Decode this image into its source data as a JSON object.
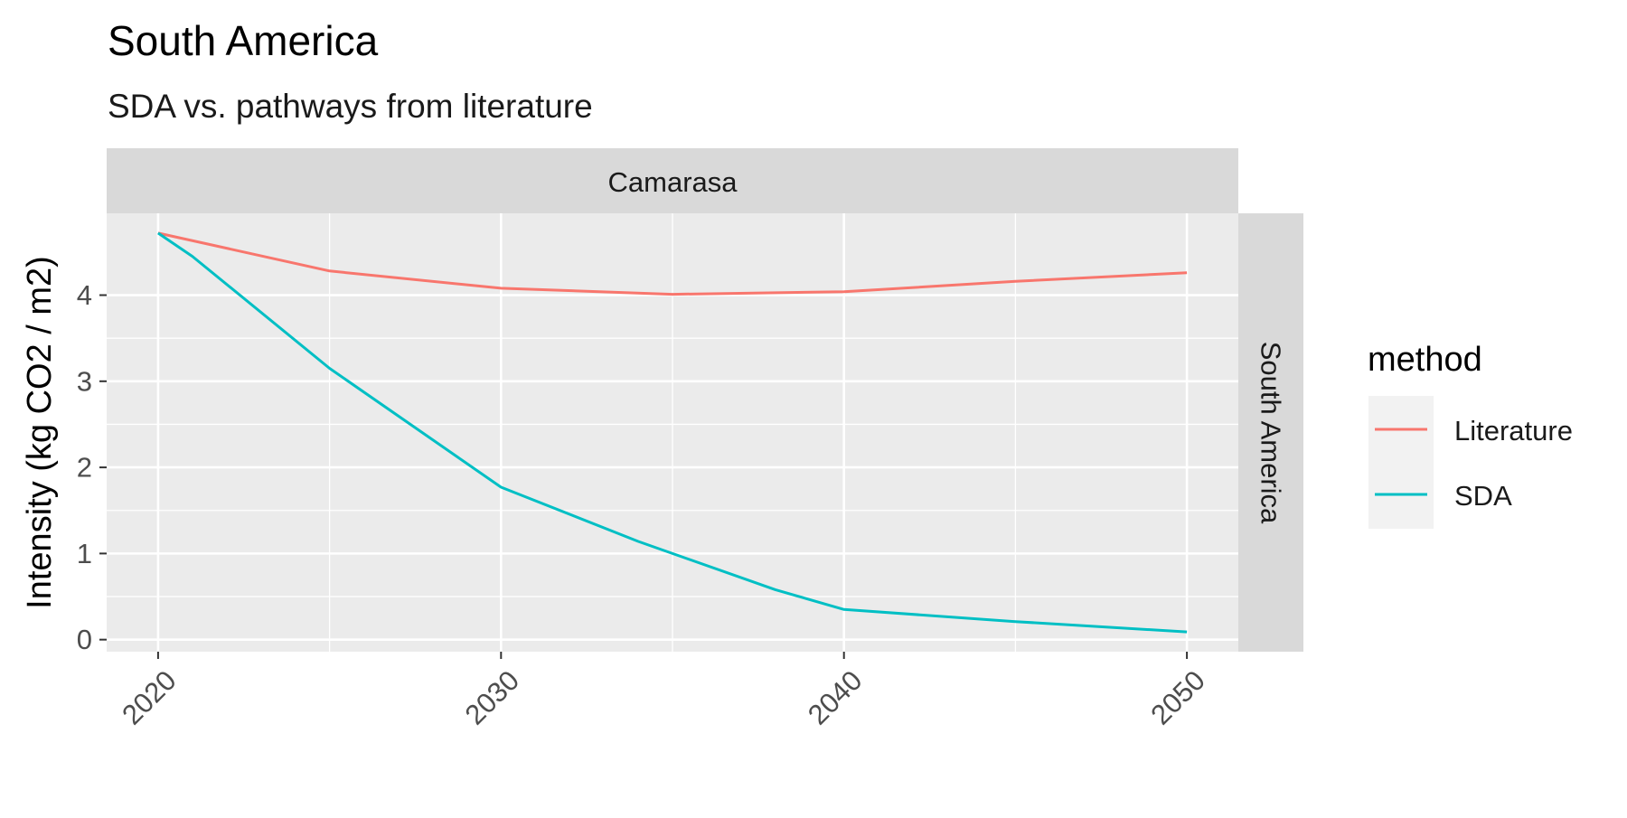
{
  "chart_data": {
    "type": "line",
    "title": "South America",
    "subtitle": "SDA vs. pathways from literature",
    "ylabel": "Intensity (kg CO2 / m2)",
    "xlabel": "",
    "facet_top": "Camarasa",
    "facet_right": "South America",
    "xlim": [
      2018.5,
      2051.5
    ],
    "ylim": [
      -0.14,
      4.95
    ],
    "x_ticks": [
      "2020",
      "2030",
      "2040",
      "2050"
    ],
    "y_ticks": [
      "0",
      "1",
      "2",
      "3",
      "4"
    ],
    "grid": true,
    "legend": {
      "title": "method",
      "position": "right",
      "entries": [
        "Literature",
        "SDA"
      ]
    },
    "series": [
      {
        "name": "Literature",
        "color": "#F8766D",
        "x": [
          2020,
          2025,
          2030,
          2035,
          2040,
          2045,
          2050
        ],
        "y": [
          4.72,
          4.28,
          4.08,
          4.01,
          4.04,
          4.16,
          4.26
        ]
      },
      {
        "name": "SDA",
        "color": "#00BFC4",
        "x": [
          2020,
          2021,
          2025,
          2030,
          2034,
          2038,
          2040,
          2045,
          2050
        ],
        "y": [
          4.72,
          4.45,
          3.15,
          1.77,
          1.14,
          0.58,
          0.35,
          0.21,
          0.09
        ]
      }
    ]
  }
}
